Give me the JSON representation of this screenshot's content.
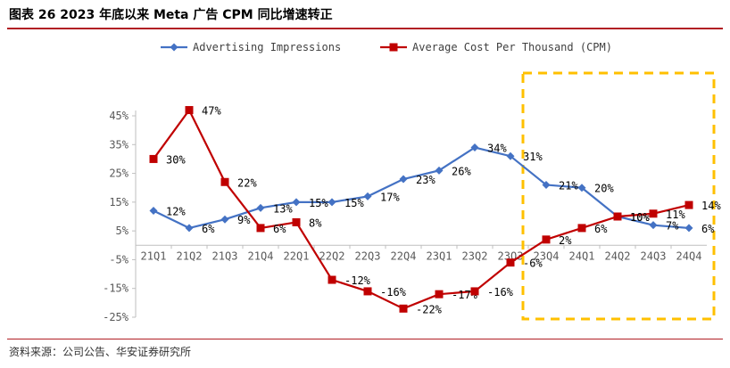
{
  "header": {
    "title": "图表 26 2023 年底以来 Meta 广告 CPM 同比增速转正"
  },
  "footer": {
    "source": "资料来源：公司公告、华安证券研究所"
  },
  "colors": {
    "impressions": "#4472c4",
    "cpm": "#c00000",
    "highlight_box": "#ffc000",
    "title_rule": "#b11f24"
  },
  "chart_data": {
    "type": "line",
    "title": "",
    "xlabel": "",
    "ylabel": "",
    "categories": [
      "21Q1",
      "21Q2",
      "21Q3",
      "21Q4",
      "22Q1",
      "22Q2",
      "22Q3",
      "22Q4",
      "23Q1",
      "23Q2",
      "23Q3",
      "23Q4",
      "24Q1",
      "24Q2",
      "24Q3",
      "24Q4"
    ],
    "series": [
      {
        "name": "Advertising Impressions",
        "color": "#4472c4",
        "marker": "diamond",
        "values": [
          12,
          6,
          9,
          13,
          15,
          15,
          17,
          23,
          26,
          34,
          31,
          21,
          20,
          10,
          7,
          6
        ],
        "labels": [
          "12%",
          "6%",
          "9%",
          "13%",
          "15%",
          "15%",
          "17%",
          "23%",
          "26%",
          "34%",
          "31%",
          "21%",
          "20%",
          "10%",
          "7%",
          "6%"
        ]
      },
      {
        "name": "Average Cost Per Thousand (CPM)",
        "color": "#c00000",
        "marker": "square",
        "values": [
          30,
          47,
          22,
          6,
          8,
          -12,
          -16,
          -22,
          -17,
          -16,
          -6,
          2,
          6,
          10,
          11,
          14
        ],
        "labels": [
          "30%",
          "47%",
          "22%",
          "6%",
          "8%",
          "-12%",
          "-16%",
          "-22%",
          "-17%",
          "-16%",
          "-6%",
          "2%",
          "6%",
          "10%",
          "11%",
          "14%"
        ]
      }
    ],
    "yticks": [
      "45%",
      "35%",
      "25%",
      "15%",
      "5%",
      "-5%",
      "-15%",
      "-25%"
    ],
    "ytick_values": [
      45,
      35,
      25,
      15,
      5,
      -5,
      -15,
      -25
    ],
    "ylim": [
      -25,
      45
    ],
    "grid": false,
    "legend_position": "top",
    "highlight": {
      "from_category": "23Q4",
      "to_category": "24Q4",
      "style": "dashed box"
    }
  }
}
